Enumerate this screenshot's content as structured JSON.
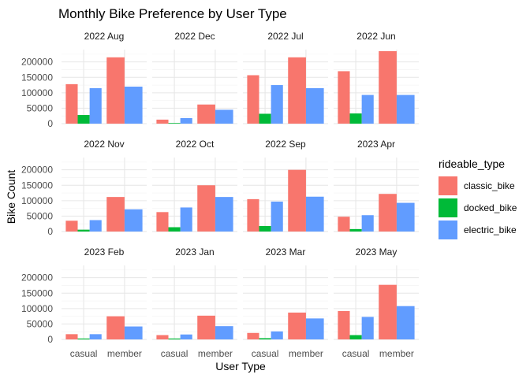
{
  "chart_data": {
    "type": "bar",
    "title": "Monthly Bike Preference by User Type",
    "xlabel": "User Type",
    "ylabel": "Bike Count",
    "ylim": [
      0,
      240000
    ],
    "y_ticks": [
      0,
      50000,
      100000,
      150000,
      200000
    ],
    "y_tick_labels": [
      "0",
      "50000",
      "100000",
      "150000",
      "200000"
    ],
    "categories": [
      "casual",
      "member"
    ],
    "grid": true,
    "legend": {
      "title": "rideable_type",
      "placement": "right",
      "entries": [
        {
          "name": "classic_bike",
          "color": "#F8766D"
        },
        {
          "name": "docked_bike",
          "color": "#00BA38"
        },
        {
          "name": "electric_bike",
          "color": "#619CFF"
        }
      ]
    },
    "facets": [
      {
        "label": "2022 Aug",
        "casual": [
          128000,
          28000,
          115000
        ],
        "member": [
          215000,
          0,
          120000
        ]
      },
      {
        "label": "2022 Dec",
        "casual": [
          13000,
          2000,
          18000
        ],
        "member": [
          62000,
          0,
          45000
        ]
      },
      {
        "label": "2022 Jul",
        "casual": [
          157000,
          32000,
          125000
        ],
        "member": [
          215000,
          0,
          115000
        ]
      },
      {
        "label": "2022 Jun",
        "casual": [
          170000,
          33000,
          93000
        ],
        "member": [
          235000,
          0,
          93000
        ]
      },
      {
        "label": "2022 Nov",
        "casual": [
          35000,
          6000,
          37000
        ],
        "member": [
          112000,
          0,
          72000
        ]
      },
      {
        "label": "2022 Oct",
        "casual": [
          63000,
          14000,
          78000
        ],
        "member": [
          150000,
          0,
          112000
        ]
      },
      {
        "label": "2022 Sep",
        "casual": [
          105000,
          18000,
          97000
        ],
        "member": [
          200000,
          0,
          113000
        ]
      },
      {
        "label": "2023 Apr",
        "casual": [
          48000,
          8000,
          53000
        ],
        "member": [
          122000,
          0,
          93000
        ]
      },
      {
        "label": "2023 Feb",
        "casual": [
          17000,
          3000,
          17000
        ],
        "member": [
          75000,
          0,
          42000
        ]
      },
      {
        "label": "2023 Jan",
        "casual": [
          14000,
          3000,
          16000
        ],
        "member": [
          77000,
          0,
          43000
        ]
      },
      {
        "label": "2023 Mar",
        "casual": [
          21000,
          4000,
          26000
        ],
        "member": [
          87000,
          0,
          68000
        ]
      },
      {
        "label": "2023 May",
        "casual": [
          92000,
          14000,
          73000
        ],
        "member": [
          177000,
          0,
          108000
        ]
      }
    ]
  }
}
